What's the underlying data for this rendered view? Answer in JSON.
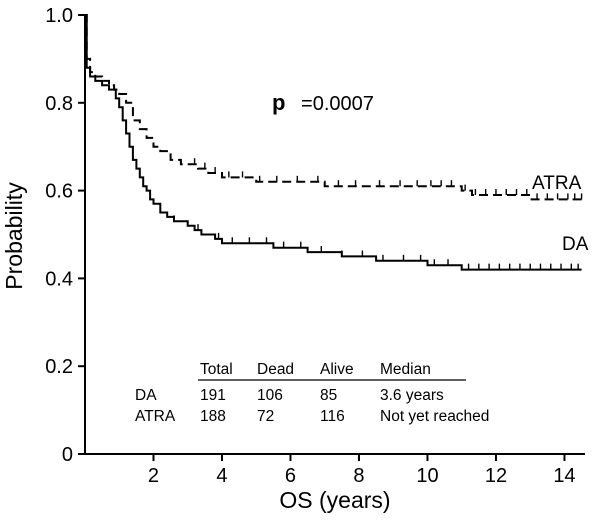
{
  "chart_data": {
    "type": "line",
    "title": "",
    "xlabel": "OS (years)",
    "ylabel": "Probability",
    "xlim": [
      0,
      14.6
    ],
    "ylim": [
      0,
      1.0
    ],
    "xticks": [
      "2",
      "4",
      "6",
      "8",
      "10",
      "12",
      "14"
    ],
    "yticks": [
      "0",
      "0.2",
      "0.4",
      "0.6",
      "0.8",
      "1.0"
    ],
    "annotation": {
      "bold": "p",
      "rest": "=0.0007"
    },
    "series": [
      {
        "name": "ATRA",
        "style": "dashed",
        "x": [
          0,
          0.05,
          0.15,
          0.3,
          0.5,
          0.7,
          0.85,
          1.0,
          1.2,
          1.4,
          1.6,
          1.8,
          2.0,
          2.2,
          2.5,
          2.8,
          3.0,
          3.3,
          3.6,
          4.0,
          4.5,
          5.0,
          5.5,
          6.0,
          6.5,
          7.0,
          7.5,
          8.0,
          8.5,
          9.0,
          9.5,
          10.0,
          10.5,
          11.0,
          11.3,
          12.0,
          12.5,
          13.0,
          14.5
        ],
        "values": [
          1.0,
          0.9,
          0.87,
          0.86,
          0.85,
          0.84,
          0.83,
          0.82,
          0.8,
          0.76,
          0.74,
          0.72,
          0.7,
          0.69,
          0.67,
          0.66,
          0.66,
          0.65,
          0.64,
          0.63,
          0.63,
          0.62,
          0.62,
          0.62,
          0.62,
          0.61,
          0.61,
          0.61,
          0.61,
          0.61,
          0.61,
          0.61,
          0.61,
          0.6,
          0.59,
          0.59,
          0.59,
          0.58,
          0.58
        ],
        "censor_x": [
          3.2,
          3.5,
          3.8,
          4.2,
          4.6,
          5.1,
          5.6,
          6.2,
          6.8,
          7.4,
          7.9,
          8.6,
          9.2,
          9.7,
          10.1,
          10.4,
          10.7,
          11.1,
          11.4,
          11.7,
          12.0,
          12.3,
          12.6,
          12.9,
          13.2,
          13.5,
          13.8,
          14.1,
          14.3,
          14.5
        ],
        "label": "ATRA"
      },
      {
        "name": "DA",
        "style": "solid",
        "x": [
          0,
          0.05,
          0.15,
          0.3,
          0.5,
          0.7,
          0.9,
          1.0,
          1.1,
          1.2,
          1.3,
          1.4,
          1.5,
          1.6,
          1.7,
          1.8,
          1.9,
          2.0,
          2.2,
          2.4,
          2.6,
          2.8,
          3.0,
          3.2,
          3.4,
          3.6,
          3.8,
          4.0,
          4.5,
          5.0,
          5.5,
          6.0,
          6.5,
          7.0,
          7.5,
          8.0,
          8.5,
          9.0,
          9.5,
          10.0,
          10.5,
          11.0,
          14.5
        ],
        "values": [
          1.0,
          0.88,
          0.86,
          0.85,
          0.84,
          0.83,
          0.81,
          0.79,
          0.76,
          0.73,
          0.7,
          0.67,
          0.65,
          0.63,
          0.61,
          0.6,
          0.58,
          0.57,
          0.55,
          0.54,
          0.53,
          0.53,
          0.52,
          0.51,
          0.5,
          0.5,
          0.49,
          0.48,
          0.48,
          0.48,
          0.47,
          0.47,
          0.46,
          0.46,
          0.45,
          0.45,
          0.44,
          0.44,
          0.44,
          0.43,
          0.43,
          0.42,
          0.42
        ],
        "censor_x": [
          2.6,
          3.3,
          3.9,
          4.3,
          4.8,
          5.3,
          5.8,
          6.3,
          6.9,
          7.5,
          8.1,
          8.7,
          9.3,
          9.8,
          10.2,
          10.6,
          11.2,
          11.5,
          11.8,
          12.1,
          12.4,
          12.7,
          13.0,
          13.3,
          13.6,
          13.9,
          14.2,
          14.4
        ],
        "label": "DA"
      }
    ],
    "summary_table": {
      "columns": [
        "Total",
        "Dead",
        "Alive",
        "Median"
      ],
      "rows": [
        {
          "group": "DA",
          "cells": [
            "191",
            "106",
            "85",
            "3.6 years"
          ]
        },
        {
          "group": "ATRA",
          "cells": [
            "188",
            "72",
            "116",
            "Not yet reached"
          ]
        }
      ]
    }
  }
}
